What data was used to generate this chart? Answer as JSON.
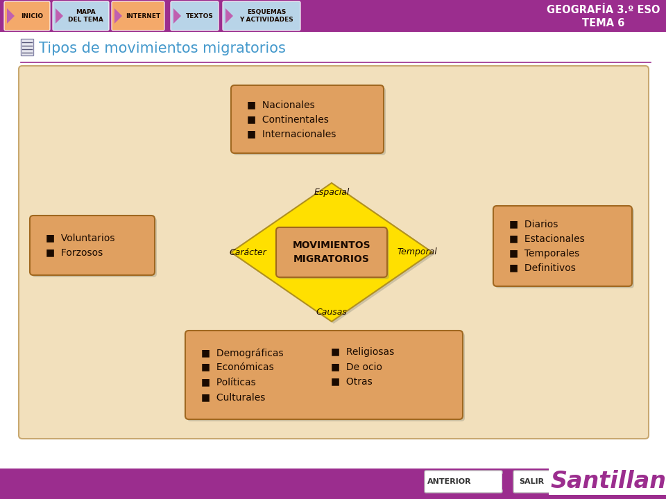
{
  "bg_color": "#ffffff",
  "header_color": "#9b2d8e",
  "header_text": "GEOGRAFÍA 3.º ESO\nTEMA 6",
  "header_text_color": "#ffffff",
  "nav_buttons": [
    "INICIO",
    "MAPA\nDEL TEMA",
    "INTERNET",
    "TEXTOS",
    "ESQUEMAS\nY ACTIVIDADES"
  ],
  "nav_orange": "#f4a96a",
  "nav_blue": "#b8d4e8",
  "nav_arrow_color": "#c060b0",
  "title_text": "Tipos de movimientos migratorios",
  "title_color": "#4499cc",
  "diagram_bg": "#f2e0bc",
  "box_fill": "#e0a060",
  "box_stroke": "#a06820",
  "diamond_fill": "#ffe000",
  "diamond_stroke": "#b09020",
  "center_box_fill": "#e0a060",
  "text_dark": "#1a0a00",
  "center_text": "MOVIMIENTOS\nMIGRATORIOS",
  "top_box_lines": [
    "■  Nacionales",
    "■  Continentales",
    "■  Internacionales"
  ],
  "left_box_lines": [
    "■  Voluntarios",
    "■  Forzosos"
  ],
  "right_box_lines": [
    "■  Diarios",
    "■  Estacionales",
    "■  Temporales",
    "■  Definitivos"
  ],
  "bottom_box_col1": [
    "■  Demográficas",
    "■  Económicas",
    "■  Políticas",
    "■  Culturales"
  ],
  "bottom_box_col2": [
    "■  Religiosas",
    "■  De ocio",
    "■  Otras"
  ],
  "label_espacial": "Espacial",
  "label_causas": "Causas",
  "label_caracter": "Carácter",
  "label_temporal": "Temporal",
  "footer_color": "#9b2d8e",
  "santillana_text": "Santillana",
  "santillana_color": "#9b2d8e",
  "anterior_text": "ANTERIOR",
  "salir_text": "SALIR"
}
